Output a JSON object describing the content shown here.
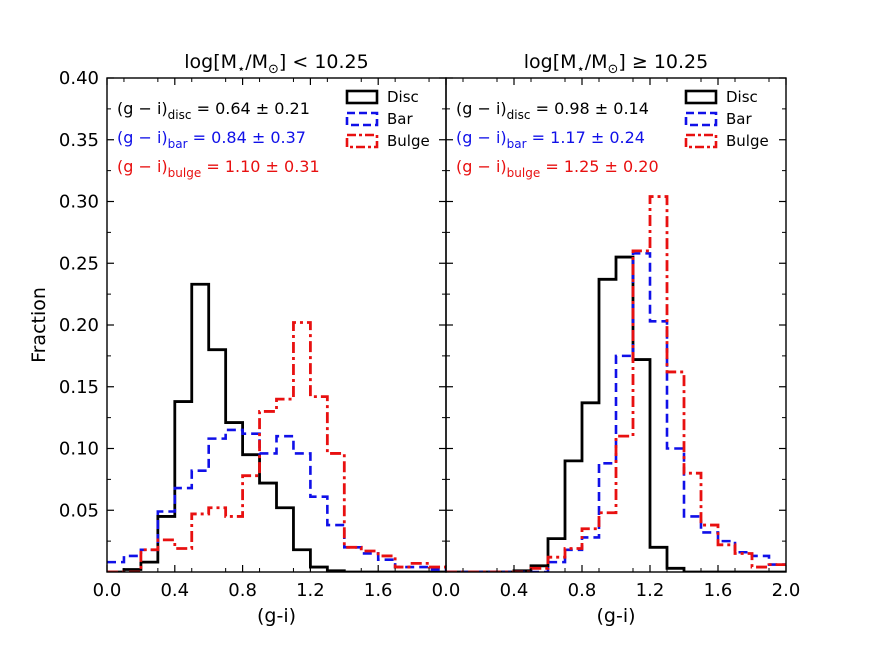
{
  "chart_data": {
    "type": "histogram",
    "ylabel": "Fraction",
    "ylim": [
      0,
      0.4
    ],
    "yticks": [
      0.05,
      0.1,
      0.15,
      0.2,
      0.25,
      0.3,
      0.35,
      0.4
    ],
    "ytick_labels": [
      "0.05",
      "0.10",
      "0.15",
      "0.20",
      "0.25",
      "0.30",
      "0.35",
      "0.40"
    ],
    "legend": [
      "Disc",
      "Bar",
      "Bulge"
    ],
    "colors": {
      "disc": "#000000",
      "bar": "#1010e8",
      "bulge": "#e81010"
    },
    "panels": [
      {
        "title_prefix": "log[M",
        "title_sub1": "⋆",
        "title_mid": "/M",
        "title_sub2": "⊙",
        "title_suffix": "] < 10.25",
        "xlabel": "(g-i)",
        "xlim": [
          0.0,
          2.0
        ],
        "xticks": [
          0.0,
          0.4,
          0.8,
          1.2,
          1.6
        ],
        "xtick_labels": [
          "0.0",
          "0.4",
          "0.8",
          "1.2",
          "1.6"
        ],
        "stats": [
          {
            "lhs": "(g − i)",
            "sub": "disc",
            "rhs": " = 0.64 ± 0.21"
          },
          {
            "lhs": "(g − i)",
            "sub": "bar",
            "rhs": " = 0.84 ± 0.37"
          },
          {
            "lhs": "(g − i)",
            "sub": "bulge",
            "rhs": " = 1.10 ± 0.31"
          }
        ],
        "bin_edges": [
          0.0,
          0.1,
          0.2,
          0.3,
          0.4,
          0.5,
          0.6,
          0.7,
          0.8,
          0.9,
          1.0,
          1.1,
          1.2,
          1.3,
          1.4,
          1.5,
          1.6,
          1.7,
          1.8,
          1.9,
          2.0
        ],
        "series": [
          {
            "name": "Disc",
            "values": [
              0.0,
              0.002,
              0.008,
              0.045,
              0.138,
              0.233,
              0.18,
              0.121,
              0.095,
              0.072,
              0.052,
              0.018,
              0.004,
              0.001,
              0.0,
              0.0,
              0.0,
              0.0,
              0.0,
              0.0
            ]
          },
          {
            "name": "Bar",
            "values": [
              0.008,
              0.013,
              0.018,
              0.049,
              0.068,
              0.082,
              0.108,
              0.115,
              0.112,
              0.096,
              0.11,
              0.096,
              0.061,
              0.038,
              0.02,
              0.015,
              0.01,
              0.004,
              0.004,
              0.002
            ]
          },
          {
            "name": "Bulge",
            "values": [
              0.0,
              0.0,
              0.018,
              0.026,
              0.019,
              0.047,
              0.052,
              0.045,
              0.078,
              0.13,
              0.14,
              0.202,
              0.142,
              0.096,
              0.02,
              0.017,
              0.013,
              0.004,
              0.007,
              0.004
            ]
          }
        ]
      },
      {
        "title_prefix": "log[M",
        "title_sub1": "⋆",
        "title_mid": "/M",
        "title_sub2": "⊙",
        "title_suffix": "] ≥ 10.25",
        "xlabel": "(g-i)",
        "xlim": [
          0.0,
          2.0
        ],
        "xticks": [
          0.0,
          0.4,
          0.8,
          1.2,
          1.6,
          2.0
        ],
        "xtick_labels": [
          "0.0",
          "0.4",
          "0.8",
          "1.2",
          "1.6",
          "2.0"
        ],
        "stats": [
          {
            "lhs": "(g − i)",
            "sub": "disc",
            "rhs": " = 0.98 ± 0.14"
          },
          {
            "lhs": "(g − i)",
            "sub": "bar",
            "rhs": " = 1.17 ± 0.24"
          },
          {
            "lhs": "(g − i)",
            "sub": "bulge",
            "rhs": " = 1.25 ± 0.20"
          }
        ],
        "bin_edges": [
          0.0,
          0.1,
          0.2,
          0.3,
          0.4,
          0.5,
          0.6,
          0.7,
          0.8,
          0.9,
          1.0,
          1.1,
          1.2,
          1.3,
          1.4,
          1.5,
          1.6,
          1.7,
          1.8,
          1.9,
          2.0
        ],
        "series": [
          {
            "name": "Disc",
            "values": [
              0.0,
              0.0,
              0.0,
              0.0,
              0.001,
              0.005,
              0.027,
              0.09,
              0.137,
              0.237,
              0.255,
              0.172,
              0.02,
              0.003,
              0.0,
              0.0,
              0.0,
              0.0,
              0.0,
              0.0
            ]
          },
          {
            "name": "Bar",
            "values": [
              0.0,
              0.0,
              0.0,
              0.0,
              0.0,
              0.0,
              0.008,
              0.018,
              0.028,
              0.088,
              0.175,
              0.258,
              0.203,
              0.1,
              0.045,
              0.032,
              0.025,
              0.016,
              0.013,
              0.006
            ]
          },
          {
            "name": "Bulge",
            "values": [
              0.0,
              0.0,
              0.0,
              0.0,
              0.0,
              0.003,
              0.012,
              0.019,
              0.035,
              0.048,
              0.11,
              0.26,
              0.304,
              0.162,
              0.08,
              0.038,
              0.022,
              0.015,
              0.004,
              0.006
            ]
          }
        ]
      }
    ]
  }
}
